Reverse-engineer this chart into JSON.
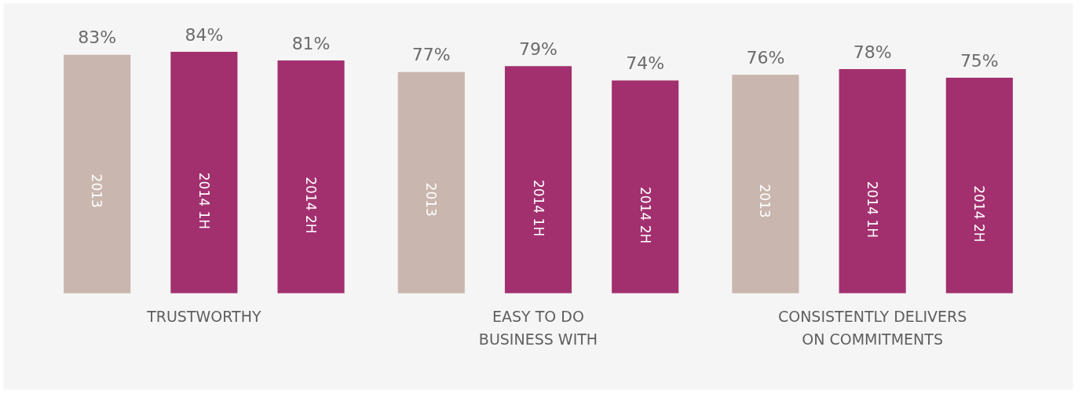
{
  "chart_data": {
    "type": "bar",
    "categories": [
      "TRUSTWORTHY",
      "EASY TO DO\nBUSINESS WITH",
      "CONSISTENTLY DELIVERS\nON COMMITMENTS"
    ],
    "series": [
      {
        "name": "2013",
        "color": "#c9b6ae",
        "values": [
          83,
          77,
          76
        ],
        "value_labels": [
          "83%",
          "77%",
          "76%"
        ]
      },
      {
        "name": "2014 1H",
        "color": "#a2306f",
        "values": [
          84,
          79,
          78
        ],
        "value_labels": [
          "84%",
          "79%",
          "78%"
        ]
      },
      {
        "name": "2014 2H",
        "color": "#a2306f",
        "values": [
          81,
          74,
          75
        ],
        "value_labels": [
          "81%",
          "74%",
          "75%"
        ]
      }
    ],
    "grid": false
  }
}
